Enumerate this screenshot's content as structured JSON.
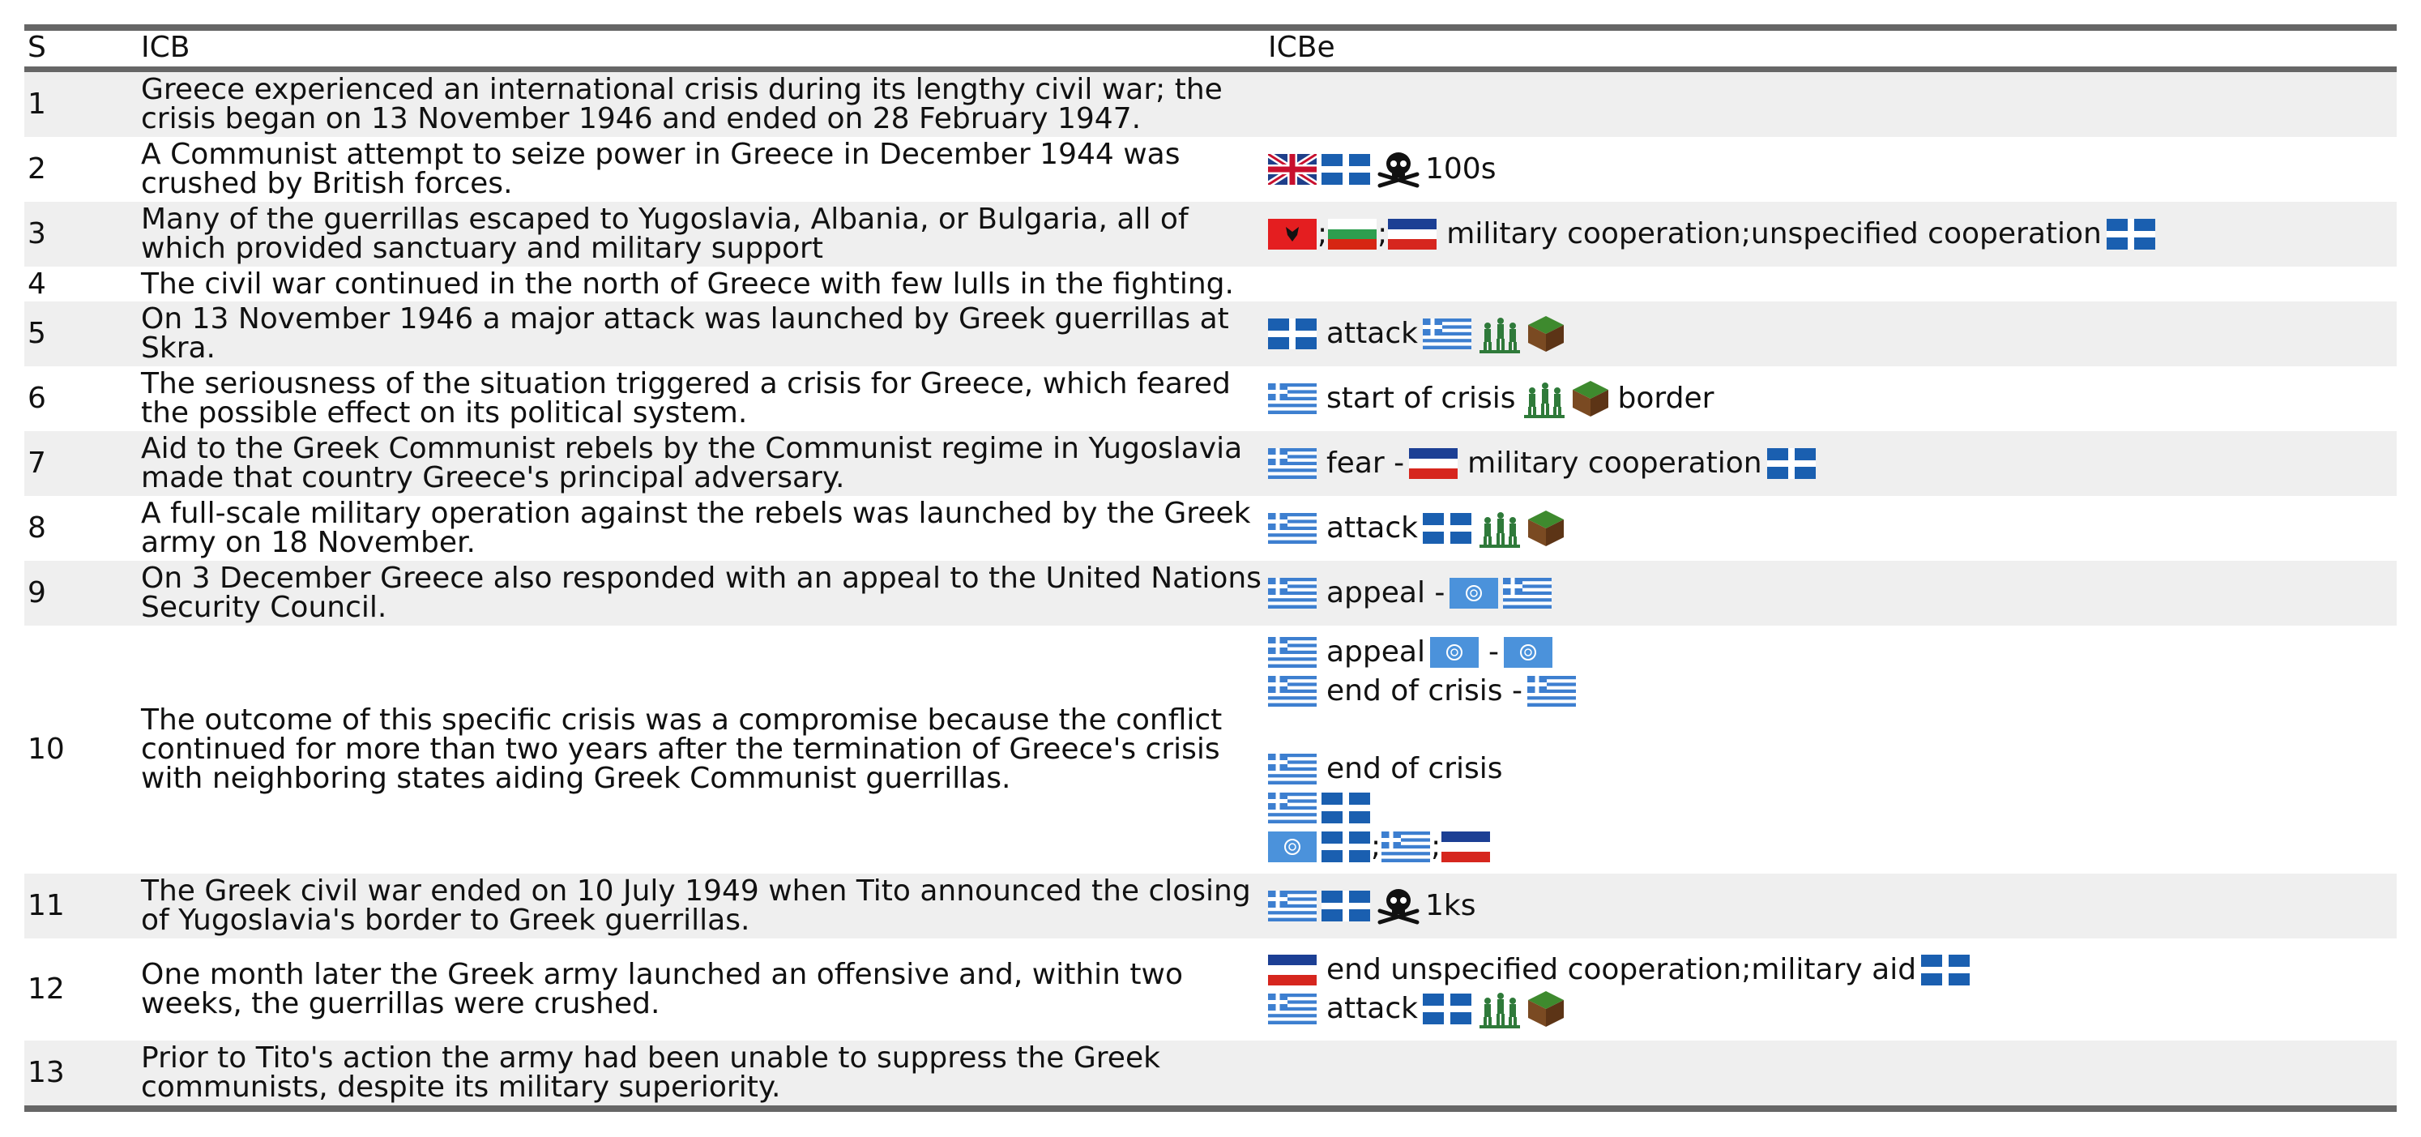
{
  "headers": {
    "s": "S",
    "icb": "ICB",
    "icbe": "ICBe"
  },
  "rows": [
    {
      "s": "1",
      "icb": "Greece experienced an international crisis during its lengthy civil war; the crisis began on 13 November 1946 and ended on 28 February 1947."
    },
    {
      "s": "2",
      "icb": "A Communist attempt to seize power in Greece in December 1944 was crushed by British forces."
    },
    {
      "s": "3",
      "icb": "Many of the guerrillas escaped to Yugoslavia, Albania, or Bulgaria, all of which provided sanctuary and military support"
    },
    {
      "s": "4",
      "icb": "The civil war continued in the north of Greece with few lulls in the fighting."
    },
    {
      "s": "5",
      "icb": "On 13 November 1946 a major attack was launched by Greek guerrillas at Skra."
    },
    {
      "s": "6",
      "icb": "The seriousness of the situation triggered a crisis for Greece, which feared the possible effect on its political system."
    },
    {
      "s": "7",
      "icb": "Aid to the Greek Communist rebels by the Communist regime in Yugoslavia made that country Greece's principal adversary."
    },
    {
      "s": "8",
      "icb": "A full-scale military operation against the rebels was launched by the Greek army on 18 November."
    },
    {
      "s": "9",
      "icb": "On 3 December Greece also responded with an appeal to the United Nations Security Council."
    },
    {
      "s": "10",
      "icb": "The outcome of this specific crisis was a compromise because the conflict continued for more than two years after the termination of Greece's crisis with neighboring states aiding Greek Communist guerrillas."
    },
    {
      "s": "11",
      "icb": "The Greek civil war ended on 10 July 1949 when Tito announced the closing of Yugoslavia's border to Greek guerrillas."
    },
    {
      "s": "12",
      "icb": "One month later the Greek army launched an offensive and, within two weeks, the guerrillas were crushed."
    },
    {
      "s": "13",
      "icb": "Prior to Tito's action the army had been unable to suppress the Greek communists, despite its military superiority."
    }
  ],
  "icbe": {
    "r2_fat": "100s",
    "r3_sep1": ";",
    "r3_sep2": ";",
    "r3_text": "military cooperation;unspecified cooperation",
    "r5_text": "attack",
    "r6_text": "start of crisis",
    "r6_text2": "border",
    "r7_text": "fear -",
    "r7_text2": "military cooperation",
    "r8_text": "attack",
    "r9_text": "appeal -",
    "r10a_text": "appeal",
    "r10a_dash": "-",
    "r10b_text": "end of crisis -",
    "r10c_text": "end of crisis",
    "r10e_sep1": ";",
    "r10e_sep2": ";",
    "r11_fat": "1ks",
    "r12a_text": "end unspecified cooperation;military aid",
    "r12b_text": "attack"
  },
  "icon_names": [
    "uk-flag",
    "greek-guerrilla-flag",
    "greece-flag",
    "albania-flag",
    "bulgaria-flag",
    "yugoslavia-flag",
    "un-flag",
    "skull-crossbones-icon",
    "soldiers-icon",
    "land-cube-icon"
  ],
  "colors": {
    "rule": "#666666",
    "shade": "#efefef",
    "greek_blue": "#2a6bbf",
    "guerrilla_blue": "#1a5fb0"
  }
}
